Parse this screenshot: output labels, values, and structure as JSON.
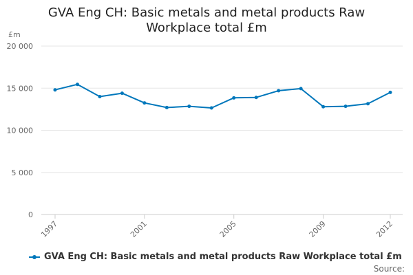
{
  "chart_data": {
    "type": "line",
    "title": "GVA Eng CH: Basic metals and metal products Raw Workplace total £m",
    "unit_label": "£m",
    "x": [
      1997,
      1998,
      1999,
      2000,
      2001,
      2002,
      2003,
      2004,
      2005,
      2006,
      2007,
      2008,
      2009,
      2010,
      2011,
      2012
    ],
    "x_tick_labels": [
      "1997",
      "2001",
      "2005",
      "2009",
      "2012"
    ],
    "y_tick_labels": [
      "0",
      "5 000",
      "10 000",
      "15 000",
      "20 000"
    ],
    "ylim": [
      0,
      20000
    ],
    "grid": true,
    "legend_position": "bottom",
    "series": [
      {
        "name": "GVA Eng CH: Basic metals and metal products Raw Workplace total £m",
        "color": "#0077bb",
        "values": [
          14800,
          15450,
          14000,
          14400,
          13250,
          12700,
          12850,
          12650,
          13850,
          13900,
          14700,
          14950,
          12800,
          12850,
          13150,
          14500
        ]
      }
    ]
  },
  "source_label": "Source:"
}
